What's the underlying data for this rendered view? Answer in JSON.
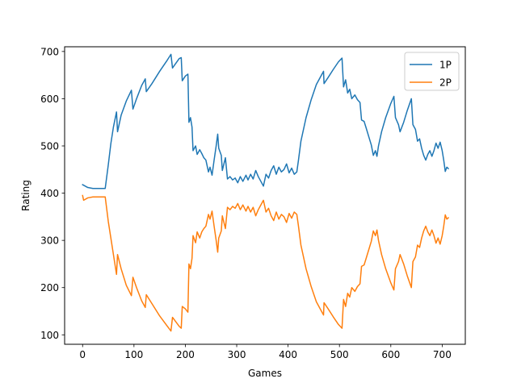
{
  "chart_data": {
    "type": "line",
    "title": "",
    "xlabel": "Games",
    "ylabel": "Rating",
    "xlim": [
      -35,
      745
    ],
    "ylim": [
      80,
      710
    ],
    "xticks": [
      0,
      100,
      200,
      300,
      400,
      500,
      600,
      700
    ],
    "yticks": [
      100,
      200,
      300,
      400,
      500,
      600,
      700
    ],
    "grid": false,
    "legend_position": "upper-right",
    "series": [
      {
        "name": "1P",
        "color": "#1f77b4",
        "points": [
          [
            0,
            418
          ],
          [
            10,
            412
          ],
          [
            20,
            410
          ],
          [
            44,
            410
          ],
          [
            50,
            460
          ],
          [
            55,
            505
          ],
          [
            60,
            540
          ],
          [
            66,
            572
          ],
          [
            68,
            530
          ],
          [
            75,
            565
          ],
          [
            85,
            595
          ],
          [
            95,
            618
          ],
          [
            98,
            578
          ],
          [
            105,
            600
          ],
          [
            115,
            628
          ],
          [
            122,
            642
          ],
          [
            124,
            615
          ],
          [
            135,
            632
          ],
          [
            150,
            658
          ],
          [
            165,
            682
          ],
          [
            172,
            694
          ],
          [
            175,
            665
          ],
          [
            188,
            685
          ],
          [
            192,
            687
          ],
          [
            194,
            638
          ],
          [
            200,
            648
          ],
          [
            205,
            652
          ],
          [
            207,
            550
          ],
          [
            210,
            560
          ],
          [
            213,
            540
          ],
          [
            215,
            490
          ],
          [
            220,
            500
          ],
          [
            223,
            482
          ],
          [
            228,
            492
          ],
          [
            232,
            484
          ],
          [
            236,
            475
          ],
          [
            240,
            470
          ],
          [
            245,
            445
          ],
          [
            248,
            455
          ],
          [
            252,
            438
          ],
          [
            256,
            470
          ],
          [
            260,
            500
          ],
          [
            263,
            525
          ],
          [
            265,
            495
          ],
          [
            270,
            480
          ],
          [
            272,
            448
          ],
          [
            278,
            475
          ],
          [
            282,
            430
          ],
          [
            287,
            435
          ],
          [
            292,
            428
          ],
          [
            297,
            432
          ],
          [
            302,
            422
          ],
          [
            307,
            435
          ],
          [
            312,
            425
          ],
          [
            318,
            438
          ],
          [
            322,
            428
          ],
          [
            327,
            440
          ],
          [
            332,
            430
          ],
          [
            337,
            448
          ],
          [
            342,
            435
          ],
          [
            347,
            425
          ],
          [
            352,
            415
          ],
          [
            357,
            440
          ],
          [
            362,
            432
          ],
          [
            367,
            448
          ],
          [
            372,
            458
          ],
          [
            377,
            440
          ],
          [
            382,
            455
          ],
          [
            387,
            445
          ],
          [
            392,
            450
          ],
          [
            397,
            462
          ],
          [
            402,
            443
          ],
          [
            407,
            453
          ],
          [
            412,
            440
          ],
          [
            417,
            445
          ],
          [
            420,
            468
          ],
          [
            425,
            510
          ],
          [
            435,
            560
          ],
          [
            445,
            598
          ],
          [
            455,
            630
          ],
          [
            465,
            650
          ],
          [
            469,
            658
          ],
          [
            470,
            632
          ],
          [
            478,
            645
          ],
          [
            488,
            662
          ],
          [
            498,
            678
          ],
          [
            505,
            686
          ],
          [
            508,
            625
          ],
          [
            512,
            640
          ],
          [
            516,
            612
          ],
          [
            520,
            620
          ],
          [
            524,
            600
          ],
          [
            530,
            608
          ],
          [
            535,
            598
          ],
          [
            540,
            592
          ],
          [
            543,
            555
          ],
          [
            548,
            552
          ],
          [
            552,
            538
          ],
          [
            557,
            520
          ],
          [
            562,
            502
          ],
          [
            566,
            480
          ],
          [
            570,
            490
          ],
          [
            573,
            478
          ],
          [
            576,
            500
          ],
          [
            582,
            530
          ],
          [
            590,
            560
          ],
          [
            600,
            590
          ],
          [
            606,
            605
          ],
          [
            609,
            560
          ],
          [
            615,
            545
          ],
          [
            618,
            530
          ],
          [
            625,
            550
          ],
          [
            632,
            575
          ],
          [
            640,
            600
          ],
          [
            643,
            545
          ],
          [
            648,
            535
          ],
          [
            652,
            510
          ],
          [
            656,
            515
          ],
          [
            660,
            495
          ],
          [
            664,
            480
          ],
          [
            668,
            470
          ],
          [
            672,
            482
          ],
          [
            676,
            490
          ],
          [
            680,
            478
          ],
          [
            684,
            490
          ],
          [
            688,
            506
          ],
          [
            692,
            495
          ],
          [
            696,
            508
          ],
          [
            700,
            490
          ],
          [
            703,
            470
          ],
          [
            706,
            446
          ],
          [
            709,
            455
          ],
          [
            712,
            452
          ]
        ]
      },
      {
        "name": "2P",
        "color": "#ff7f0e",
        "points": [
          [
            0,
            395
          ],
          [
            2,
            385
          ],
          [
            10,
            390
          ],
          [
            20,
            392
          ],
          [
            44,
            392
          ],
          [
            50,
            340
          ],
          [
            55,
            305
          ],
          [
            60,
            270
          ],
          [
            66,
            228
          ],
          [
            68,
            270
          ],
          [
            75,
            240
          ],
          [
            85,
            205
          ],
          [
            95,
            183
          ],
          [
            98,
            222
          ],
          [
            105,
            200
          ],
          [
            115,
            172
          ],
          [
            122,
            158
          ],
          [
            124,
            185
          ],
          [
            135,
            166
          ],
          [
            150,
            140
          ],
          [
            165,
            118
          ],
          [
            172,
            108
          ],
          [
            175,
            137
          ],
          [
            188,
            118
          ],
          [
            192,
            114
          ],
          [
            194,
            160
          ],
          [
            200,
            155
          ],
          [
            205,
            148
          ],
          [
            207,
            250
          ],
          [
            210,
            240
          ],
          [
            213,
            262
          ],
          [
            215,
            310
          ],
          [
            220,
            295
          ],
          [
            223,
            318
          ],
          [
            228,
            305
          ],
          [
            232,
            318
          ],
          [
            236,
            325
          ],
          [
            240,
            330
          ],
          [
            245,
            355
          ],
          [
            248,
            345
          ],
          [
            252,
            362
          ],
          [
            256,
            330
          ],
          [
            260,
            300
          ],
          [
            263,
            275
          ],
          [
            265,
            305
          ],
          [
            270,
            320
          ],
          [
            272,
            352
          ],
          [
            278,
            325
          ],
          [
            282,
            370
          ],
          [
            287,
            365
          ],
          [
            292,
            372
          ],
          [
            297,
            368
          ],
          [
            302,
            378
          ],
          [
            307,
            365
          ],
          [
            312,
            375
          ],
          [
            318,
            362
          ],
          [
            322,
            372
          ],
          [
            327,
            360
          ],
          [
            332,
            370
          ],
          [
            337,
            352
          ],
          [
            342,
            365
          ],
          [
            347,
            375
          ],
          [
            352,
            385
          ],
          [
            357,
            360
          ],
          [
            362,
            368
          ],
          [
            367,
            352
          ],
          [
            372,
            342
          ],
          [
            377,
            360
          ],
          [
            382,
            345
          ],
          [
            387,
            355
          ],
          [
            392,
            350
          ],
          [
            397,
            338
          ],
          [
            402,
            357
          ],
          [
            407,
            347
          ],
          [
            412,
            360
          ],
          [
            417,
            355
          ],
          [
            420,
            332
          ],
          [
            425,
            290
          ],
          [
            435,
            240
          ],
          [
            445,
            202
          ],
          [
            455,
            170
          ],
          [
            465,
            150
          ],
          [
            469,
            142
          ],
          [
            470,
            168
          ],
          [
            478,
            155
          ],
          [
            488,
            138
          ],
          [
            498,
            122
          ],
          [
            505,
            114
          ],
          [
            508,
            175
          ],
          [
            512,
            160
          ],
          [
            516,
            188
          ],
          [
            520,
            180
          ],
          [
            524,
            200
          ],
          [
            530,
            192
          ],
          [
            535,
            202
          ],
          [
            540,
            208
          ],
          [
            543,
            245
          ],
          [
            548,
            248
          ],
          [
            552,
            262
          ],
          [
            557,
            280
          ],
          [
            562,
            298
          ],
          [
            566,
            320
          ],
          [
            570,
            310
          ],
          [
            573,
            322
          ],
          [
            576,
            300
          ],
          [
            582,
            270
          ],
          [
            590,
            240
          ],
          [
            600,
            210
          ],
          [
            606,
            195
          ],
          [
            609,
            240
          ],
          [
            615,
            255
          ],
          [
            618,
            270
          ],
          [
            625,
            250
          ],
          [
            632,
            225
          ],
          [
            640,
            200
          ],
          [
            643,
            255
          ],
          [
            648,
            265
          ],
          [
            652,
            290
          ],
          [
            656,
            285
          ],
          [
            660,
            305
          ],
          [
            664,
            320
          ],
          [
            668,
            330
          ],
          [
            672,
            318
          ],
          [
            676,
            310
          ],
          [
            680,
            322
          ],
          [
            684,
            310
          ],
          [
            688,
            294
          ],
          [
            692,
            305
          ],
          [
            696,
            292
          ],
          [
            700,
            310
          ],
          [
            703,
            330
          ],
          [
            706,
            354
          ],
          [
            709,
            345
          ],
          [
            712,
            348
          ]
        ]
      }
    ]
  }
}
